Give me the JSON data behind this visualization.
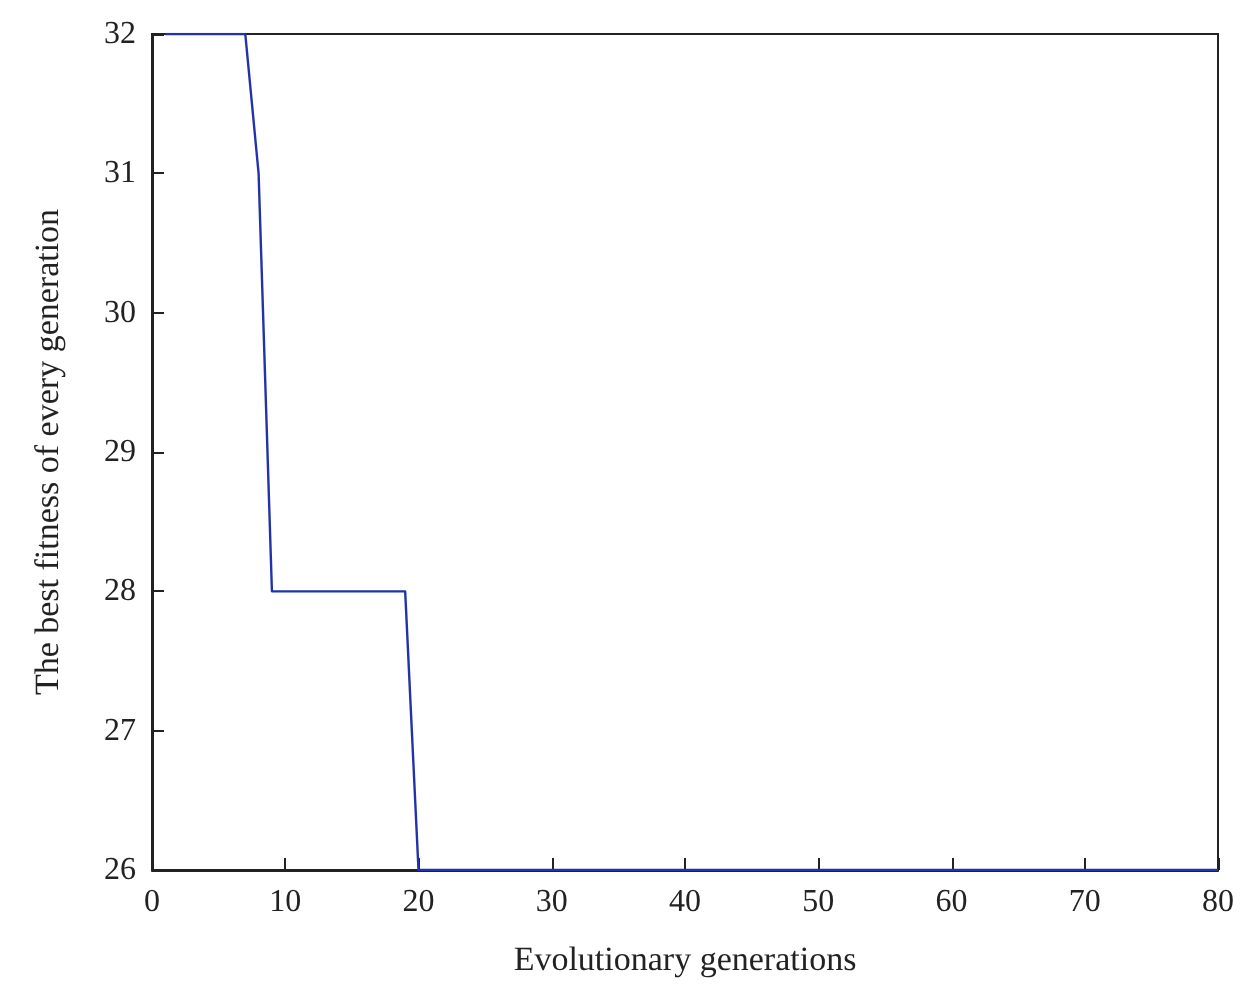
{
  "chart_data": {
    "type": "line",
    "xlabel": "Evolutionary generations",
    "ylabel": "The best fitness of every generation",
    "x": [
      1,
      7,
      8,
      9,
      19,
      20,
      80
    ],
    "series": [
      {
        "color": "#2233aa",
        "values": [
          32,
          32,
          31,
          28,
          28,
          26,
          26
        ]
      }
    ],
    "xlim": [
      0,
      80
    ],
    "xticks": [
      0,
      10,
      20,
      30,
      40,
      50,
      60,
      70,
      80
    ],
    "ylim": [
      26,
      32
    ],
    "yticks": [
      26,
      27,
      28,
      29,
      30,
      31,
      32
    ],
    "grid": false,
    "marker": "none",
    "line_style": "solid"
  }
}
